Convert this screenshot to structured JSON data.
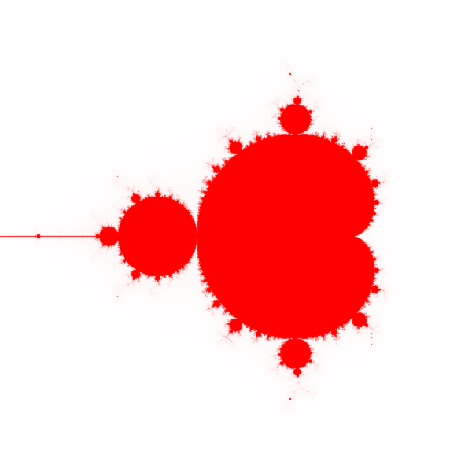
{
  "image": {
    "subject": "mandelbrot-set",
    "fill_color": "#ff0000",
    "background_color": "#ffffff",
    "halo_color": "#ffd0d0"
  }
}
